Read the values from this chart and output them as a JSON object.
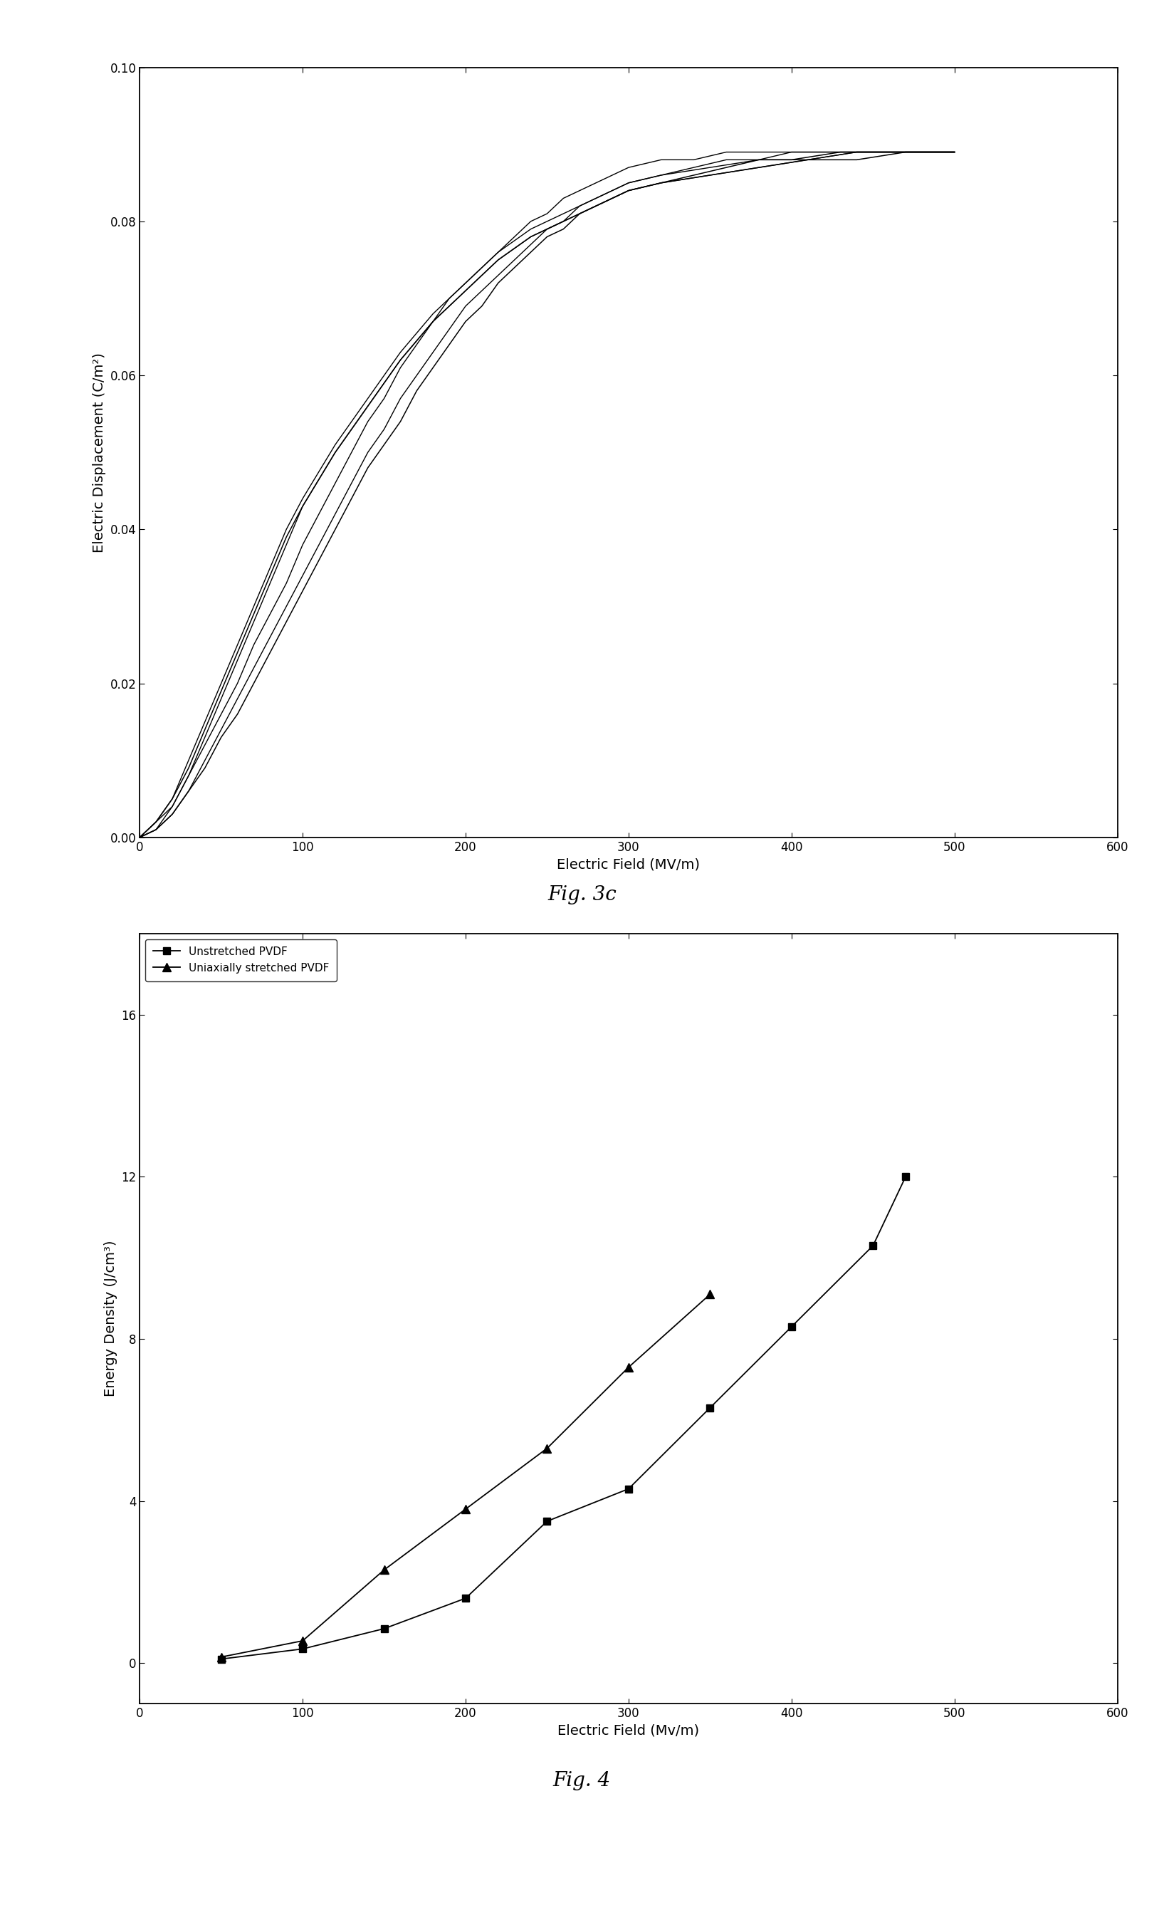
{
  "fig3c": {
    "title": "Fig. 3c",
    "xlabel": "Electric Field (MV/m)",
    "ylabel": "Electric Displacement (C/m²)",
    "xlim": [
      0,
      600
    ],
    "ylim": [
      0.0,
      0.1
    ],
    "xticks": [
      0,
      100,
      200,
      300,
      400,
      500,
      600
    ],
    "yticks": [
      0.0,
      0.02,
      0.04,
      0.06,
      0.08,
      0.1
    ],
    "loops": [
      {
        "up": [
          [
            0,
            0.0
          ],
          [
            10,
            0.001
          ],
          [
            20,
            0.003
          ],
          [
            30,
            0.006
          ],
          [
            40,
            0.009
          ],
          [
            50,
            0.013
          ],
          [
            60,
            0.016
          ],
          [
            70,
            0.02
          ],
          [
            80,
            0.024
          ],
          [
            90,
            0.028
          ],
          [
            100,
            0.032
          ],
          [
            110,
            0.036
          ],
          [
            120,
            0.04
          ],
          [
            130,
            0.044
          ],
          [
            140,
            0.048
          ],
          [
            150,
            0.051
          ],
          [
            160,
            0.054
          ],
          [
            170,
            0.058
          ],
          [
            180,
            0.061
          ],
          [
            190,
            0.064
          ],
          [
            200,
            0.067
          ],
          [
            210,
            0.069
          ],
          [
            220,
            0.072
          ],
          [
            230,
            0.074
          ],
          [
            240,
            0.076
          ],
          [
            250,
            0.078
          ],
          [
            260,
            0.079
          ],
          [
            270,
            0.081
          ],
          [
            280,
            0.082
          ],
          [
            290,
            0.083
          ],
          [
            300,
            0.084
          ],
          [
            320,
            0.085
          ],
          [
            340,
            0.086
          ],
          [
            360,
            0.087
          ],
          [
            380,
            0.088
          ],
          [
            400,
            0.088
          ],
          [
            430,
            0.089
          ],
          [
            460,
            0.089
          ],
          [
            500,
            0.089
          ]
        ],
        "down": [
          [
            500,
            0.089
          ],
          [
            470,
            0.089
          ],
          [
            440,
            0.088
          ],
          [
            410,
            0.088
          ],
          [
            380,
            0.087
          ],
          [
            350,
            0.086
          ],
          [
            320,
            0.085
          ],
          [
            300,
            0.084
          ],
          [
            280,
            0.082
          ],
          [
            260,
            0.08
          ],
          [
            240,
            0.078
          ],
          [
            220,
            0.075
          ],
          [
            200,
            0.071
          ],
          [
            180,
            0.067
          ],
          [
            160,
            0.062
          ],
          [
            140,
            0.056
          ],
          [
            120,
            0.05
          ],
          [
            100,
            0.043
          ],
          [
            90,
            0.039
          ],
          [
            80,
            0.034
          ],
          [
            70,
            0.029
          ],
          [
            60,
            0.024
          ],
          [
            50,
            0.019
          ],
          [
            40,
            0.014
          ],
          [
            30,
            0.009
          ],
          [
            20,
            0.005
          ],
          [
            10,
            0.002
          ],
          [
            0,
            0.0
          ]
        ]
      },
      {
        "up": [
          [
            0,
            0.0
          ],
          [
            10,
            0.001
          ],
          [
            20,
            0.003
          ],
          [
            30,
            0.006
          ],
          [
            40,
            0.01
          ],
          [
            50,
            0.014
          ],
          [
            60,
            0.018
          ],
          [
            70,
            0.022
          ],
          [
            80,
            0.026
          ],
          [
            90,
            0.03
          ],
          [
            100,
            0.034
          ],
          [
            110,
            0.038
          ],
          [
            120,
            0.042
          ],
          [
            130,
            0.046
          ],
          [
            140,
            0.05
          ],
          [
            150,
            0.053
          ],
          [
            160,
            0.057
          ],
          [
            170,
            0.06
          ],
          [
            180,
            0.063
          ],
          [
            190,
            0.066
          ],
          [
            200,
            0.069
          ],
          [
            210,
            0.071
          ],
          [
            220,
            0.073
          ],
          [
            230,
            0.075
          ],
          [
            240,
            0.077
          ],
          [
            250,
            0.079
          ],
          [
            260,
            0.08
          ],
          [
            270,
            0.082
          ],
          [
            280,
            0.083
          ],
          [
            290,
            0.084
          ],
          [
            300,
            0.085
          ],
          [
            320,
            0.086
          ],
          [
            340,
            0.087
          ],
          [
            360,
            0.088
          ],
          [
            380,
            0.088
          ],
          [
            400,
            0.089
          ],
          [
            430,
            0.089
          ],
          [
            460,
            0.089
          ],
          [
            500,
            0.089
          ]
        ],
        "down": [
          [
            500,
            0.089
          ],
          [
            470,
            0.089
          ],
          [
            440,
            0.089
          ],
          [
            410,
            0.088
          ],
          [
            380,
            0.087
          ],
          [
            350,
            0.086
          ],
          [
            320,
            0.085
          ],
          [
            300,
            0.084
          ],
          [
            280,
            0.082
          ],
          [
            260,
            0.08
          ],
          [
            240,
            0.078
          ],
          [
            220,
            0.075
          ],
          [
            200,
            0.071
          ],
          [
            180,
            0.067
          ],
          [
            160,
            0.062
          ],
          [
            140,
            0.056
          ],
          [
            120,
            0.05
          ],
          [
            100,
            0.043
          ],
          [
            90,
            0.038
          ],
          [
            80,
            0.033
          ],
          [
            70,
            0.028
          ],
          [
            60,
            0.023
          ],
          [
            50,
            0.018
          ],
          [
            40,
            0.013
          ],
          [
            30,
            0.008
          ],
          [
            20,
            0.004
          ],
          [
            10,
            0.001
          ],
          [
            0,
            0.0
          ]
        ]
      },
      {
        "up": [
          [
            0,
            0.0
          ],
          [
            10,
            0.002
          ],
          [
            20,
            0.004
          ],
          [
            30,
            0.008
          ],
          [
            40,
            0.012
          ],
          [
            50,
            0.016
          ],
          [
            60,
            0.02
          ],
          [
            70,
            0.025
          ],
          [
            80,
            0.029
          ],
          [
            90,
            0.033
          ],
          [
            100,
            0.038
          ],
          [
            110,
            0.042
          ],
          [
            120,
            0.046
          ],
          [
            130,
            0.05
          ],
          [
            140,
            0.054
          ],
          [
            150,
            0.057
          ],
          [
            160,
            0.061
          ],
          [
            170,
            0.064
          ],
          [
            180,
            0.067
          ],
          [
            190,
            0.07
          ],
          [
            200,
            0.072
          ],
          [
            210,
            0.074
          ],
          [
            220,
            0.076
          ],
          [
            230,
            0.078
          ],
          [
            240,
            0.08
          ],
          [
            250,
            0.081
          ],
          [
            260,
            0.083
          ],
          [
            270,
            0.084
          ],
          [
            280,
            0.085
          ],
          [
            290,
            0.086
          ],
          [
            300,
            0.087
          ],
          [
            320,
            0.088
          ],
          [
            340,
            0.088
          ],
          [
            360,
            0.089
          ],
          [
            380,
            0.089
          ],
          [
            400,
            0.089
          ],
          [
            430,
            0.089
          ],
          [
            460,
            0.089
          ],
          [
            500,
            0.089
          ]
        ],
        "down": [
          [
            500,
            0.089
          ],
          [
            470,
            0.089
          ],
          [
            440,
            0.089
          ],
          [
            410,
            0.088
          ],
          [
            380,
            0.088
          ],
          [
            350,
            0.087
          ],
          [
            320,
            0.086
          ],
          [
            300,
            0.085
          ],
          [
            280,
            0.083
          ],
          [
            260,
            0.081
          ],
          [
            240,
            0.079
          ],
          [
            220,
            0.076
          ],
          [
            200,
            0.072
          ],
          [
            180,
            0.068
          ],
          [
            160,
            0.063
          ],
          [
            140,
            0.057
          ],
          [
            120,
            0.051
          ],
          [
            100,
            0.044
          ],
          [
            90,
            0.04
          ],
          [
            80,
            0.035
          ],
          [
            70,
            0.03
          ],
          [
            60,
            0.025
          ],
          [
            50,
            0.02
          ],
          [
            40,
            0.015
          ],
          [
            30,
            0.01
          ],
          [
            20,
            0.005
          ],
          [
            10,
            0.002
          ],
          [
            0,
            0.0
          ]
        ]
      }
    ]
  },
  "fig4": {
    "title": "Fig. 4",
    "xlabel": "Electric Field (Mv/m)",
    "ylabel": "Energy Density (J/cm³)",
    "xlim": [
      0,
      600
    ],
    "ylim": [
      -1,
      18
    ],
    "xticks": [
      0,
      100,
      200,
      300,
      400,
      500,
      600
    ],
    "yticks": [
      0,
      4,
      8,
      12,
      16
    ],
    "series": [
      {
        "label": "Unstretched PVDF",
        "marker": "s",
        "x": [
          50,
          100,
          150,
          200,
          250,
          300,
          350,
          400,
          450,
          470
        ],
        "y": [
          0.1,
          0.35,
          0.85,
          1.6,
          3.5,
          4.3,
          6.3,
          8.3,
          10.3,
          12.0
        ]
      },
      {
        "label": "Uniaxially stretched PVDF",
        "marker": "^",
        "x": [
          50,
          100,
          150,
          200,
          250,
          300,
          350
        ],
        "y": [
          0.15,
          0.55,
          2.3,
          3.8,
          5.3,
          7.3,
          9.1
        ]
      }
    ]
  }
}
